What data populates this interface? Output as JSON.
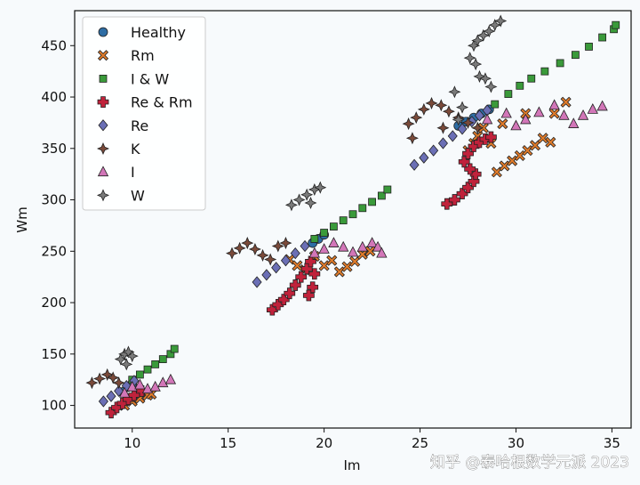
{
  "chart_data": {
    "type": "scatter",
    "title": "",
    "xlabel": "Im",
    "ylabel": "Wm",
    "xlim": [
      7.0,
      36.0
    ],
    "ylim": [
      78,
      484
    ],
    "xticks": [
      10,
      15,
      20,
      25,
      30,
      35
    ],
    "yticks": [
      100,
      150,
      200,
      250,
      300,
      350,
      400,
      450
    ],
    "grid": false,
    "legend_position": "top-left",
    "series": [
      {
        "name": "Healthy",
        "marker": "circle",
        "color": "#2e6da4",
        "points": [
          [
            9.5,
            113
          ],
          [
            9.8,
            118
          ],
          [
            10.0,
            121
          ],
          [
            19.4,
            258
          ],
          [
            19.7,
            262
          ],
          [
            20.0,
            266
          ],
          [
            27.0,
            372
          ],
          [
            27.4,
            376
          ],
          [
            27.8,
            380
          ],
          [
            28.2,
            384
          ],
          [
            28.6,
            388
          ]
        ]
      },
      {
        "name": "Rm",
        "marker": "x",
        "color": "#e07b2a",
        "points": [
          [
            9.6,
            100
          ],
          [
            10.0,
            104
          ],
          [
            10.4,
            107
          ],
          [
            10.8,
            110
          ],
          [
            11.0,
            111
          ],
          [
            18.2,
            242
          ],
          [
            18.6,
            236
          ],
          [
            19.0,
            232
          ],
          [
            19.5,
            245
          ],
          [
            20.0,
            236
          ],
          [
            20.4,
            241
          ],
          [
            20.8,
            230
          ],
          [
            21.2,
            235
          ],
          [
            21.6,
            240
          ],
          [
            22.0,
            247
          ],
          [
            22.4,
            250
          ],
          [
            27.5,
            348
          ],
          [
            27.8,
            355
          ],
          [
            28.0,
            362
          ],
          [
            28.3,
            370
          ],
          [
            28.7,
            355
          ],
          [
            29.0,
            327
          ],
          [
            29.4,
            333
          ],
          [
            29.8,
            338
          ],
          [
            30.2,
            343
          ],
          [
            30.6,
            348
          ],
          [
            31.0,
            353
          ],
          [
            31.4,
            360
          ],
          [
            29.3,
            374
          ],
          [
            30.5,
            384
          ],
          [
            32.0,
            384
          ],
          [
            32.6,
            395
          ],
          [
            31.8,
            356
          ]
        ]
      },
      {
        "name": "I & W",
        "marker": "square",
        "color": "#3a9a3a",
        "points": [
          [
            10.0,
            125
          ],
          [
            10.4,
            130
          ],
          [
            10.8,
            135
          ],
          [
            11.2,
            140
          ],
          [
            11.6,
            145
          ],
          [
            12.0,
            150
          ],
          [
            12.2,
            155
          ],
          [
            19.5,
            262
          ],
          [
            20.0,
            268
          ],
          [
            20.5,
            274
          ],
          [
            21.0,
            280
          ],
          [
            21.5,
            286
          ],
          [
            22.0,
            292
          ],
          [
            22.5,
            298
          ],
          [
            23.0,
            304
          ],
          [
            23.3,
            310
          ],
          [
            28.9,
            393
          ],
          [
            29.6,
            403
          ],
          [
            30.2,
            411
          ],
          [
            30.8,
            418
          ],
          [
            31.5,
            425
          ],
          [
            32.3,
            433
          ],
          [
            33.1,
            441
          ],
          [
            33.8,
            449
          ],
          [
            34.5,
            458
          ],
          [
            35.1,
            466
          ],
          [
            35.2,
            470
          ]
        ]
      },
      {
        "name": "Re & Rm",
        "marker": "plus",
        "color": "#c0223b",
        "points": [
          [
            8.9,
            93
          ],
          [
            9.2,
            98
          ],
          [
            9.5,
            102
          ],
          [
            9.8,
            106
          ],
          [
            10.1,
            110
          ],
          [
            10.5,
            114
          ],
          [
            17.3,
            193
          ],
          [
            17.6,
            198
          ],
          [
            17.9,
            203
          ],
          [
            18.2,
            209
          ],
          [
            18.5,
            217
          ],
          [
            18.8,
            225
          ],
          [
            19.1,
            233
          ],
          [
            19.3,
            240
          ],
          [
            19.5,
            228
          ],
          [
            19.4,
            215
          ],
          [
            19.2,
            207
          ],
          [
            26.4,
            296
          ],
          [
            26.8,
            300
          ],
          [
            27.2,
            306
          ],
          [
            27.5,
            312
          ],
          [
            27.8,
            318
          ],
          [
            27.9,
            325
          ],
          [
            27.6,
            330
          ],
          [
            27.3,
            337
          ],
          [
            27.5,
            345
          ],
          [
            27.8,
            352
          ],
          [
            28.1,
            356
          ],
          [
            28.4,
            359
          ],
          [
            28.7,
            361
          ]
        ]
      },
      {
        "name": "Re",
        "marker": "diamond",
        "color": "#6b6fb5",
        "points": [
          [
            8.5,
            104
          ],
          [
            8.9,
            109
          ],
          [
            9.3,
            114
          ],
          [
            9.7,
            119
          ],
          [
            10.1,
            124
          ],
          [
            16.5,
            220
          ],
          [
            17.0,
            227
          ],
          [
            17.5,
            234
          ],
          [
            18.0,
            241
          ],
          [
            18.5,
            248
          ],
          [
            19.0,
            255
          ],
          [
            24.7,
            334
          ],
          [
            25.2,
            341
          ],
          [
            25.7,
            348
          ],
          [
            26.2,
            355
          ],
          [
            26.7,
            362
          ],
          [
            27.2,
            369
          ],
          [
            27.7,
            376
          ],
          [
            28.1,
            382
          ],
          [
            28.5,
            387
          ]
        ]
      },
      {
        "name": "K",
        "marker": "star4",
        "color": "#7a4a3a",
        "points": [
          [
            7.9,
            122
          ],
          [
            8.3,
            126
          ],
          [
            8.7,
            130
          ],
          [
            9.0,
            127
          ],
          [
            9.3,
            122
          ],
          [
            15.2,
            248
          ],
          [
            15.6,
            253
          ],
          [
            16.0,
            258
          ],
          [
            16.4,
            252
          ],
          [
            16.8,
            246
          ],
          [
            17.2,
            242
          ],
          [
            17.6,
            255
          ],
          [
            18.0,
            258
          ],
          [
            24.4,
            374
          ],
          [
            24.8,
            380
          ],
          [
            25.2,
            388
          ],
          [
            25.6,
            394
          ],
          [
            24.6,
            360
          ],
          [
            26.1,
            392
          ],
          [
            26.5,
            386
          ],
          [
            27.0,
            380
          ],
          [
            27.5,
            375
          ],
          [
            28.0,
            370
          ],
          [
            26.2,
            370
          ]
        ]
      },
      {
        "name": "I",
        "marker": "triangle",
        "color": "#d276b8",
        "points": [
          [
            9.6,
            112
          ],
          [
            10.0,
            118
          ],
          [
            10.4,
            120
          ],
          [
            10.8,
            116
          ],
          [
            11.2,
            118
          ],
          [
            11.6,
            122
          ],
          [
            12.0,
            125
          ],
          [
            19.5,
            248
          ],
          [
            20.0,
            252
          ],
          [
            20.5,
            258
          ],
          [
            21.0,
            254
          ],
          [
            21.5,
            249
          ],
          [
            22.0,
            254
          ],
          [
            22.5,
            258
          ],
          [
            22.8,
            254
          ],
          [
            23.0,
            248
          ],
          [
            28.5,
            378
          ],
          [
            29.5,
            384
          ],
          [
            30.0,
            372
          ],
          [
            30.5,
            378
          ],
          [
            31.2,
            385
          ],
          [
            32.0,
            392
          ],
          [
            33.0,
            374
          ],
          [
            33.5,
            382
          ],
          [
            34.0,
            388
          ],
          [
            34.5,
            391
          ],
          [
            32.5,
            382
          ]
        ]
      },
      {
        "name": "W",
        "marker": "star4",
        "color": "#7a7a7a",
        "points": [
          [
            9.4,
            145
          ],
          [
            9.6,
            150
          ],
          [
            9.8,
            152
          ],
          [
            10.0,
            148
          ],
          [
            9.7,
            140
          ],
          [
            18.3,
            295
          ],
          [
            18.7,
            300
          ],
          [
            19.1,
            305
          ],
          [
            19.5,
            310
          ],
          [
            19.8,
            312
          ],
          [
            19.3,
            297
          ],
          [
            27.8,
            450
          ],
          [
            28.0,
            455
          ],
          [
            28.3,
            460
          ],
          [
            28.6,
            464
          ],
          [
            28.9,
            470
          ],
          [
            29.2,
            474
          ],
          [
            27.6,
            438
          ],
          [
            27.9,
            432
          ],
          [
            28.1,
            420
          ],
          [
            28.4,
            418
          ],
          [
            28.7,
            410
          ],
          [
            26.8,
            405
          ],
          [
            27.2,
            390
          ],
          [
            27.0,
            378
          ]
        ]
      }
    ]
  },
  "watermark": "知乎 @泰哈根数学元派 2023"
}
